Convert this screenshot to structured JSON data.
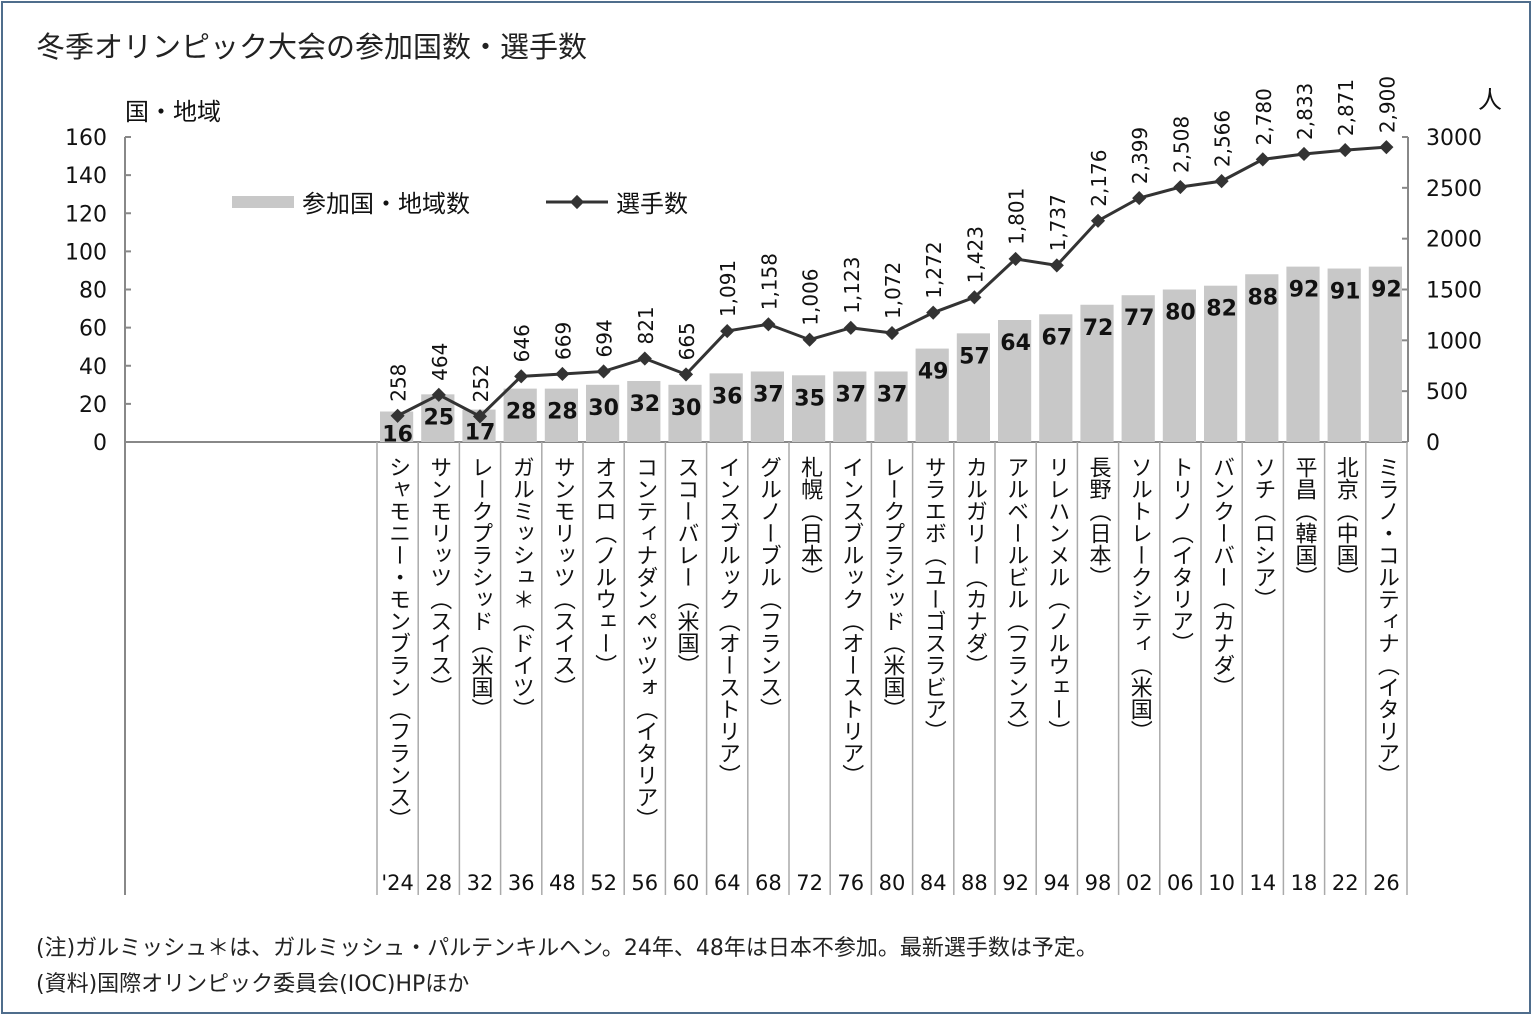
{
  "title": "冬季オリンピック大会の参加国数・選手数",
  "notes": [
    "(注)ガルミッシュ＊は、ガルミッシュ・パルテンキルヘン。24年、48年は日本不参加。最新選手数は予定。",
    "(資料)国際オリンピック委員会(IOC)HPほか"
  ],
  "chart_data": {
    "type": "bar+line",
    "title": "冬季オリンピック大会の参加国数・選手数",
    "left_axis_label": "国・地域",
    "right_axis_label": "人",
    "left_ylim": [
      0,
      160
    ],
    "left_ticks": [
      0,
      20,
      40,
      60,
      80,
      100,
      120,
      140,
      160
    ],
    "right_ylim": [
      0,
      3000
    ],
    "right_ticks": [
      0,
      500,
      1000,
      1500,
      2000,
      2500,
      3000
    ],
    "legend_placement": "top-left",
    "grid": false,
    "bar_color": "#c8c8c8",
    "line_color": "#333333",
    "categories": [
      "'24",
      "28",
      "32",
      "36",
      "48",
      "52",
      "56",
      "60",
      "64",
      "68",
      "72",
      "76",
      "80",
      "84",
      "88",
      "92",
      "94",
      "98",
      "02",
      "06",
      "10",
      "14",
      "18",
      "22",
      "26"
    ],
    "venues": [
      "シャモニー・モンブラン（フランス）",
      "サンモリッツ（スイス）",
      "レークプラシッド（米国）",
      "ガルミッシュ＊（ドイツ）",
      "サンモリッツ（スイス）",
      "オスロ（ノルウェー）",
      "コンティナダンペッツォ（イタリア）",
      "スコーバレー（米国）",
      "インスブルック（オーストリア）",
      "グルノーブル（フランス）",
      "札幌（日本）",
      "インスブルック（オーストリア）",
      "レークプラシッド（米国）",
      "サラエボ（ユーゴスラビア）",
      "カルガリー（カナダ）",
      "アルベールビル（フランス）",
      "リレハンメル（ノルウェー）",
      "長野（日本）",
      "ソルトレークシティ（米国）",
      "トリノ（イタリア）",
      "バンクーバー（カナダ）",
      "ソチ（ロシア）",
      "平昌（韓国）",
      "北京（中国）",
      "ミラノ・コルティナ（イタリア）"
    ],
    "series": [
      {
        "name": "参加国・地域数",
        "type": "bar",
        "axis": "left",
        "values": [
          16,
          25,
          17,
          28,
          28,
          30,
          32,
          30,
          36,
          37,
          35,
          37,
          37,
          49,
          57,
          64,
          67,
          72,
          77,
          80,
          82,
          88,
          92,
          91,
          92
        ]
      },
      {
        "name": "選手数",
        "type": "line",
        "axis": "right",
        "values": [
          258,
          464,
          252,
          646,
          669,
          694,
          821,
          665,
          1091,
          1158,
          1006,
          1123,
          1072,
          1272,
          1423,
          1801,
          1737,
          2176,
          2399,
          2508,
          2566,
          2780,
          2833,
          2871,
          2900
        ]
      }
    ]
  }
}
